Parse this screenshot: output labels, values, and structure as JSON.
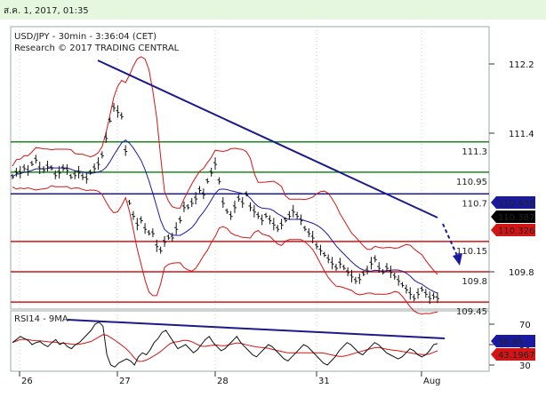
{
  "header": {
    "date_text": "ส.ค. 1, 2017, 01:35"
  },
  "chart_data": [
    {
      "type": "line",
      "title": "USD/JPY - 30min - 3:36:04 (CET)",
      "subtitle": "Research © 2017 TRADING CENTRAL",
      "x_ticks": [
        "26",
        "27",
        "28",
        "31",
        "Aug"
      ],
      "y_ticks": [
        "112.2",
        "111.4",
        "109.8"
      ],
      "ylim": [
        109.3,
        112.5
      ],
      "levels": [
        {
          "value": 111.3,
          "label": "111.3",
          "color": "#1a8a1a"
        },
        {
          "value": 110.95,
          "label": "110.95",
          "color": "#1a8a1a"
        },
        {
          "value": 110.7,
          "label": "110.7",
          "color": "#1a1aa0"
        },
        {
          "value": 110.15,
          "label": "110.15",
          "color": "#d41515"
        },
        {
          "value": 109.8,
          "label": "109.8",
          "color": "#d41515"
        },
        {
          "value": 109.45,
          "label": "109.45",
          "color": "#d41515"
        }
      ],
      "price_tags": [
        {
          "value": 110.456,
          "label": "110.456",
          "bg": "#1a1aa0",
          "fg": "#ffffff"
        },
        {
          "value": 110.387,
          "label": "110.387",
          "bg": "#000000",
          "fg": "#ffffff"
        },
        {
          "value": 110.326,
          "label": "110.326",
          "bg": "#d41515",
          "fg": "#ffffff"
        }
      ],
      "price_series": [
        110.9,
        110.95,
        110.95,
        111.0,
        110.97,
        111.05,
        111.1,
        111.0,
        110.98,
        111.02,
        111.0,
        110.92,
        110.95,
        111.0,
        110.98,
        110.9,
        110.92,
        110.95,
        110.9,
        110.88,
        110.95,
        111.0,
        111.05,
        111.15,
        111.35,
        111.55,
        111.7,
        111.65,
        111.6,
        111.2,
        110.6,
        110.45,
        110.35,
        110.4,
        110.3,
        110.25,
        110.25,
        110.1,
        110.05,
        110.15,
        110.2,
        110.2,
        110.3,
        110.4,
        110.55,
        110.55,
        110.6,
        110.65,
        110.75,
        110.7,
        110.85,
        110.95,
        111.05,
        110.85,
        110.6,
        110.5,
        110.45,
        110.55,
        110.65,
        110.6,
        110.7,
        110.55,
        110.5,
        110.45,
        110.4,
        110.45,
        110.4,
        110.35,
        110.3,
        110.35,
        110.4,
        110.45,
        110.5,
        110.45,
        110.4,
        110.3,
        110.25,
        110.2,
        110.1,
        110.05,
        110.0,
        109.95,
        109.9,
        109.85,
        109.9,
        109.85,
        109.8,
        109.75,
        109.7,
        109.72,
        109.78,
        109.82,
        109.9,
        109.95,
        109.85,
        109.8,
        109.85,
        109.8,
        109.75,
        109.7,
        109.65,
        109.6,
        109.55,
        109.5,
        109.55,
        109.6,
        109.55,
        109.5,
        109.52,
        109.5
      ],
      "trendline": {
        "from": [
          112.2
        ],
        "to": [
          110.5
        ]
      },
      "forecast_target": 109.8
    },
    {
      "type": "line",
      "title": "RSI14 - 9MA",
      "y_ticks": [
        "70",
        "50",
        "30"
      ],
      "ylim": [
        20,
        85
      ],
      "tags": [
        {
          "value": 50.85,
          "label": "50.85",
          "bg": "#1a1aa0",
          "fg": "#ffffff"
        },
        {
          "value": 43.1967,
          "label": "43.1967",
          "bg": "#d41515",
          "fg": "#ffffff"
        }
      ],
      "rsi_series": [
        52,
        55,
        58,
        56,
        54,
        50,
        52,
        53,
        50,
        48,
        52,
        55,
        50,
        52,
        48,
        46,
        50,
        52,
        56,
        60,
        64,
        70,
        72,
        68,
        40,
        30,
        28,
        32,
        34,
        36,
        34,
        30,
        38,
        42,
        40,
        45,
        52,
        56,
        62,
        64,
        58,
        52,
        46,
        48,
        50,
        46,
        42,
        45,
        50,
        55,
        58,
        52,
        48,
        44,
        46,
        50,
        54,
        58,
        52,
        48,
        44,
        40,
        38,
        42,
        46,
        50,
        48,
        44,
        40,
        36,
        34,
        38,
        42,
        46,
        50,
        48,
        44,
        40,
        36,
        32,
        30,
        34,
        38,
        44,
        48,
        52,
        50,
        46,
        42,
        40,
        44,
        48,
        52,
        50,
        46,
        42,
        40,
        38,
        36,
        38,
        42,
        46,
        44,
        40,
        38,
        40,
        44,
        50,
        51
      ]
    }
  ]
}
